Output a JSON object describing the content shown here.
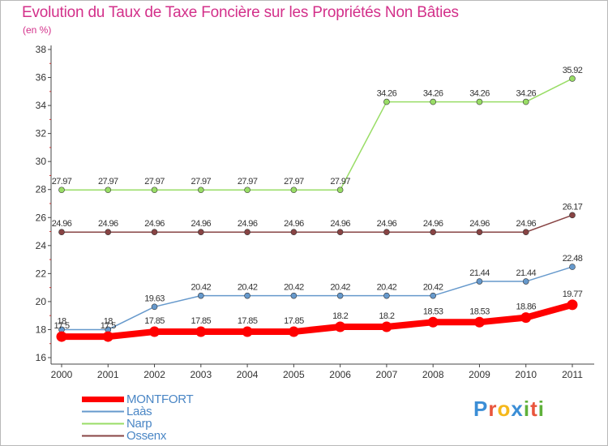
{
  "header": {
    "title": "Evolution du Taux de Taxe Foncière sur les Propriétés Non Bâties",
    "unit": "(en %)"
  },
  "logo": {
    "text": "Proxiti",
    "colors": [
      "#3b8ed6",
      "#e9553c",
      "#f5b81b",
      "#3b8ed6",
      "#5fb13a",
      "#e9553c",
      "#5fb13a"
    ]
  },
  "chart_data": {
    "type": "line",
    "title": "Evolution du Taux de Taxe Foncière sur les Propriétés Non Bâties",
    "ylabel": "(en %)",
    "xlabel": "",
    "ylim": [
      16,
      38
    ],
    "yticks": [
      16,
      18,
      20,
      22,
      24,
      26,
      28,
      30,
      32,
      34,
      36,
      38
    ],
    "categories": [
      "2000",
      "2001",
      "2002",
      "2003",
      "2004",
      "2005",
      "2006",
      "2007",
      "2008",
      "2009",
      "2010",
      "2011"
    ],
    "grid": false,
    "legend_position": "bottom-left",
    "series": [
      {
        "name": "MONTFORT",
        "color": "#ff0000",
        "emphasis": true,
        "values": [
          17.5,
          17.5,
          17.85,
          17.85,
          17.85,
          17.85,
          18.2,
          18.2,
          18.53,
          18.53,
          18.86,
          19.77
        ],
        "labels": [
          "17.5",
          "17.5",
          "17.85",
          "17.85",
          "17.85",
          "17.85",
          "18.2",
          "18.2",
          "18.53",
          "18.53",
          "18.86",
          "19.77"
        ]
      },
      {
        "name": "Laàs",
        "color": "#6699cc",
        "emphasis": false,
        "values": [
          18,
          18,
          19.63,
          20.42,
          20.42,
          20.42,
          20.42,
          20.42,
          20.42,
          21.44,
          21.44,
          22.48
        ],
        "labels": [
          "18",
          "18",
          "19.63",
          "20.42",
          "20.42",
          "20.42",
          "20.42",
          "20.42",
          "20.42",
          "21.44",
          "21.44",
          "22.48"
        ]
      },
      {
        "name": "Narp",
        "color": "#99dd66",
        "emphasis": false,
        "values": [
          27.97,
          27.97,
          27.97,
          27.97,
          27.97,
          27.97,
          27.97,
          34.26,
          34.26,
          34.26,
          34.26,
          35.92
        ],
        "labels": [
          "27.97",
          "27.97",
          "27.97",
          "27.97",
          "27.97",
          "27.97",
          "27.97",
          "34.26",
          "34.26",
          "34.26",
          "34.26",
          "35.92"
        ]
      },
      {
        "name": "Ossenx",
        "color": "#884444",
        "emphasis": false,
        "values": [
          24.96,
          24.96,
          24.96,
          24.96,
          24.96,
          24.96,
          24.96,
          24.96,
          24.96,
          24.96,
          24.96,
          26.17
        ],
        "labels": [
          "24.96",
          "24.96",
          "24.96",
          "24.96",
          "24.96",
          "24.96",
          "24.96",
          "24.96",
          "24.96",
          "24.96",
          "24.96",
          "26.17"
        ]
      }
    ]
  }
}
